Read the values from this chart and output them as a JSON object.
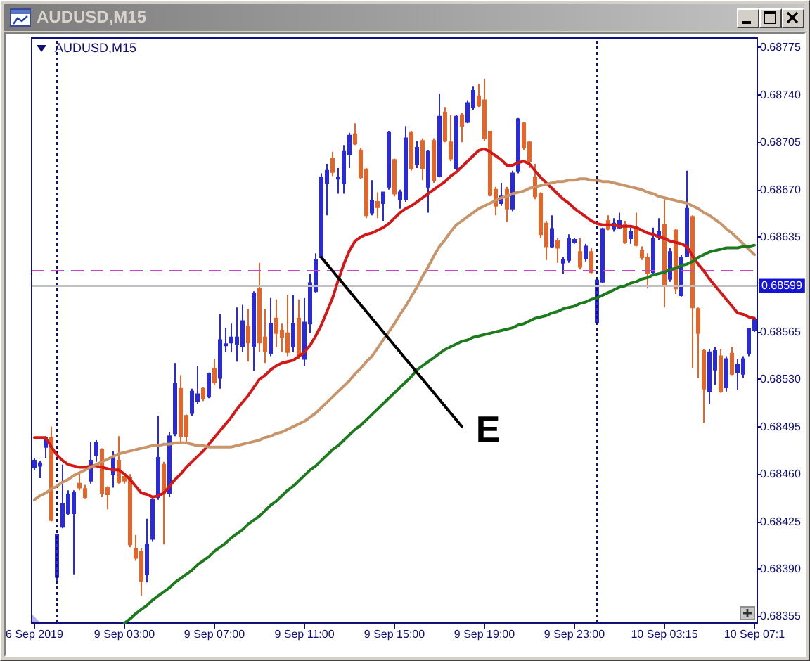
{
  "chart_data": {
    "type": "candlestick",
    "title": "AUDUSD,M15",
    "subtitle": "AUDUSD,M15",
    "categories": [
      "6 Sep 2019",
      null,
      null,
      null,
      null,
      null,
      null,
      null,
      null,
      null,
      null,
      null,
      null,
      null,
      null,
      null,
      "9 Sep 03:00",
      null,
      null,
      null,
      null,
      null,
      null,
      null,
      null,
      null,
      null,
      null,
      null,
      null,
      null,
      null,
      "9 Sep 07:00",
      null,
      null,
      null,
      null,
      null,
      null,
      null,
      null,
      null,
      null,
      null,
      null,
      null,
      null,
      null,
      "9 Sep 11:00",
      null,
      null,
      null,
      null,
      null,
      null,
      null,
      null,
      null,
      null,
      null,
      null,
      null,
      null,
      null,
      "9 Sep 15:00",
      null,
      null,
      null,
      null,
      null,
      null,
      null,
      null,
      null,
      null,
      null,
      null,
      null,
      null,
      null,
      "9 Sep 19:00",
      null,
      null,
      null,
      null,
      null,
      null,
      null,
      null,
      null,
      null,
      null,
      null,
      null,
      null,
      null,
      "9 Sep 23:00",
      null,
      null,
      null,
      null,
      null,
      null,
      null,
      null,
      null,
      null,
      null,
      null,
      null,
      null,
      null,
      "10 Sep 03:15",
      null,
      null,
      null,
      null,
      null,
      null,
      null,
      null,
      null,
      null,
      null,
      null,
      null,
      null,
      null,
      "10 Sep 07:1"
    ],
    "ylim": [
      0.6835,
      0.68782
    ],
    "yticks": [
      0.68355,
      {
        "value": 0.6839,
        "label": "0.68390"
      },
      0.68425,
      {
        "value": 0.6846,
        "label": "0.68460"
      },
      0.68495,
      {
        "value": 0.6853,
        "label": "0.68530"
      },
      0.68565,
      0.68635,
      {
        "value": 0.6867,
        "label": "0.68670"
      },
      0.68705,
      {
        "value": 0.6874,
        "label": "0.68740"
      },
      0.68775
    ],
    "ohlc": [
      [
        0.68465,
        0.68472,
        0.68463,
        0.6847
      ],
      [
        0.68466,
        0.6847,
        0.68457,
        0.68468
      ],
      [
        0.6848,
        0.68488,
        0.68472,
        0.68487
      ],
      [
        0.68487,
        0.68495,
        0.68425,
        0.68426
      ],
      [
        0.68384,
        0.68416,
        0.6838,
        0.68415
      ],
      [
        0.68421,
        0.68467,
        0.6842,
        0.68438
      ],
      [
        0.68431,
        0.68448,
        0.6843,
        0.68445
      ],
      [
        0.68431,
        0.68448,
        0.68386,
        0.68446
      ],
      [
        0.68453,
        0.68462,
        0.68448,
        0.6845
      ],
      [
        0.68449,
        0.68452,
        0.68442,
        0.68443
      ],
      [
        0.68455,
        0.68484,
        0.68453,
        0.6847
      ],
      [
        0.68474,
        0.68485,
        0.68469,
        0.68483
      ],
      [
        0.68478,
        0.68479,
        0.68443,
        0.68446
      ],
      [
        0.6845,
        0.68451,
        0.68434,
        0.68445
      ],
      [
        0.6846,
        0.68477,
        0.6845,
        0.68473
      ],
      [
        0.6847,
        0.68488,
        0.68453,
        0.68454
      ],
      [
        0.68458,
        0.6846,
        0.68453,
        0.68455
      ],
      [
        0.68457,
        0.6846,
        0.68406,
        0.68408
      ],
      [
        0.68405,
        0.68415,
        0.68396,
        0.68398
      ],
      [
        0.68403,
        0.68405,
        0.6837,
        0.68381
      ],
      [
        0.68386,
        0.68427,
        0.6838,
        0.68408
      ],
      [
        0.68412,
        0.68443,
        0.6841,
        0.68441
      ],
      [
        0.68443,
        0.68503,
        0.68441,
        0.68472
      ],
      [
        0.68467,
        0.68469,
        0.68408,
        0.68446
      ],
      [
        0.68446,
        0.68491,
        0.68443,
        0.68488
      ],
      [
        0.6849,
        0.68542,
        0.68488,
        0.68527
      ],
      [
        0.68523,
        0.68533,
        0.68484,
        0.68488
      ],
      [
        0.68503,
        0.68504,
        0.68484,
        0.68488
      ],
      [
        0.68505,
        0.68523,
        0.68503,
        0.68521
      ],
      [
        0.68514,
        0.6854,
        0.68512,
        0.68519
      ],
      [
        0.68523,
        0.68524,
        0.68514,
        0.68516
      ],
      [
        0.68517,
        0.68535,
        0.68516,
        0.68534
      ],
      [
        0.68538,
        0.68545,
        0.68526,
        0.68528
      ],
      [
        0.68531,
        0.68578,
        0.68523,
        0.68559
      ],
      [
        0.68555,
        0.68568,
        0.6855,
        0.68556
      ],
      [
        0.68557,
        0.68571,
        0.6855,
        0.68561
      ],
      [
        0.68556,
        0.68583,
        0.68543,
        0.68561
      ],
      [
        0.68554,
        0.68585,
        0.6855,
        0.68573
      ],
      [
        0.68569,
        0.68582,
        0.68543,
        0.68557
      ],
      [
        0.68554,
        0.68595,
        0.68536,
        0.68593
      ],
      [
        0.68597,
        0.68616,
        0.6855,
        0.68557
      ],
      [
        0.68561,
        0.68582,
        0.68542,
        0.68551
      ],
      [
        0.68549,
        0.6859,
        0.68547,
        0.68571
      ],
      [
        0.68575,
        0.68589,
        0.68554,
        0.68564
      ],
      [
        0.68566,
        0.68571,
        0.6855,
        0.68561
      ],
      [
        0.68564,
        0.68592,
        0.68547,
        0.6855
      ],
      [
        0.68554,
        0.68592,
        0.6855,
        0.68571
      ],
      [
        0.68575,
        0.68589,
        0.68545,
        0.68547
      ],
      [
        0.68545,
        0.6859,
        0.6854,
        0.68572
      ],
      [
        0.68571,
        0.68608,
        0.68564,
        0.68601
      ],
      [
        0.68595,
        0.68623,
        0.68594,
        0.68618
      ],
      [
        0.6862,
        0.68682,
        0.68618,
        0.68679
      ],
      [
        0.68675,
        0.68689,
        0.68651,
        0.68684
      ],
      [
        0.68693,
        0.68698,
        0.6868,
        0.68683
      ],
      [
        0.68678,
        0.68686,
        0.68667,
        0.68679
      ],
      [
        0.68675,
        0.68703,
        0.68667,
        0.68698
      ],
      [
        0.68696,
        0.68712,
        0.68686,
        0.6871
      ],
      [
        0.68711,
        0.68719,
        0.68703,
        0.68704
      ],
      [
        0.68699,
        0.68701,
        0.68678,
        0.68679
      ],
      [
        0.68685,
        0.68686,
        0.68649,
        0.68651
      ],
      [
        0.68653,
        0.68677,
        0.68651,
        0.68662
      ],
      [
        0.68661,
        0.68668,
        0.68649,
        0.68657
      ],
      [
        0.6866,
        0.68668,
        0.68647,
        0.68668
      ],
      [
        0.68672,
        0.68713,
        0.6867,
        0.68712
      ],
      [
        0.68692,
        0.68693,
        0.68665,
        0.68667
      ],
      [
        0.68663,
        0.6867,
        0.68656,
        0.68668
      ],
      [
        0.68663,
        0.68717,
        0.68661,
        0.68708
      ],
      [
        0.68712,
        0.68713,
        0.68684,
        0.68686
      ],
      [
        0.68689,
        0.68706,
        0.68686,
        0.68701
      ],
      [
        0.68706,
        0.68708,
        0.68677,
        0.68686
      ],
      [
        0.68672,
        0.68699,
        0.68653,
        0.68698
      ],
      [
        0.68706,
        0.68708,
        0.68675,
        0.68677
      ],
      [
        0.6868,
        0.68741,
        0.68679,
        0.68724
      ],
      [
        0.68727,
        0.68731,
        0.68705,
        0.68706
      ],
      [
        0.68705,
        0.68725,
        0.68691,
        0.68693
      ],
      [
        0.68686,
        0.68725,
        0.68684,
        0.68724
      ],
      [
        0.68725,
        0.68727,
        0.68705,
        0.68717
      ],
      [
        0.6872,
        0.68736,
        0.68719,
        0.68734
      ],
      [
        0.68731,
        0.68746,
        0.68729,
        0.68743
      ],
      [
        0.68739,
        0.68748,
        0.68731,
        0.68732
      ],
      [
        0.68736,
        0.68752,
        0.68706,
        0.68708
      ],
      [
        0.68713,
        0.68713,
        0.68665,
        0.68666
      ],
      [
        0.6867,
        0.68672,
        0.68651,
        0.68658
      ],
      [
        0.6866,
        0.68675,
        0.68658,
        0.68665
      ],
      [
        0.6867,
        0.68672,
        0.68646,
        0.68656
      ],
      [
        0.68656,
        0.68684,
        0.68654,
        0.68682
      ],
      [
        0.68684,
        0.68723,
        0.68682,
        0.68722
      ],
      [
        0.68719,
        0.6872,
        0.68699,
        0.68701
      ],
      [
        0.68705,
        0.68706,
        0.68686,
        0.68691
      ],
      [
        0.68679,
        0.68689,
        0.68663,
        0.68665
      ],
      [
        0.68667,
        0.68668,
        0.68634,
        0.68637
      ],
      [
        0.68645,
        0.68647,
        0.68618,
        0.68628
      ],
      [
        0.68628,
        0.68651,
        0.68627,
        0.68641
      ],
      [
        0.68632,
        0.68634,
        0.68616,
        0.68627
      ],
      [
        0.68616,
        0.6862,
        0.68608,
        0.68618
      ],
      [
        0.68618,
        0.68637,
        0.68616,
        0.68634
      ],
      [
        0.68631,
        0.68634,
        0.6863,
        0.68633
      ],
      [
        0.68624,
        0.68634,
        0.68611,
        0.68613
      ],
      [
        0.68619,
        0.6863,
        0.68617,
        0.68628
      ],
      [
        0.68624,
        0.68627,
        0.68608,
        0.68609
      ],
      [
        0.68572,
        0.68604,
        0.68571,
        0.68603
      ],
      [
        0.68602,
        0.68642,
        0.68601,
        0.68641
      ],
      [
        0.68647,
        0.68651,
        0.6864,
        0.68641
      ],
      [
        0.68641,
        0.68649,
        0.68639,
        0.68645
      ],
      [
        0.68642,
        0.68653,
        0.68641,
        0.68647
      ],
      [
        0.68644,
        0.68647,
        0.6863,
        0.68631
      ],
      [
        0.68634,
        0.68642,
        0.6863,
        0.68639
      ],
      [
        0.68642,
        0.68653,
        0.68628,
        0.68629
      ],
      [
        0.68625,
        0.68628,
        0.68618,
        0.6862
      ],
      [
        0.6862,
        0.68623,
        0.68597,
        0.68608
      ],
      [
        0.68609,
        0.68642,
        0.68607,
        0.68634
      ],
      [
        0.68635,
        0.68649,
        0.68633,
        0.68639
      ],
      [
        0.68644,
        0.68663,
        0.68583,
        0.68599
      ],
      [
        0.68604,
        0.68627,
        0.68602,
        0.68624
      ],
      [
        0.6864,
        0.68641,
        0.68593,
        0.68597
      ],
      [
        0.68592,
        0.68622,
        0.68591,
        0.6862
      ],
      [
        0.68621,
        0.68684,
        0.6862,
        0.68656
      ],
      [
        0.6865,
        0.68651,
        0.68538,
        0.68583
      ],
      [
        0.68582,
        0.68583,
        0.68531,
        0.68564
      ],
      [
        0.68551,
        0.68552,
        0.68498,
        0.68523
      ],
      [
        0.68521,
        0.68552,
        0.68512,
        0.6855
      ],
      [
        0.68537,
        0.68554,
        0.68526,
        0.68551
      ],
      [
        0.68547,
        0.68552,
        0.6852,
        0.68521
      ],
      [
        0.68524,
        0.68547,
        0.68521,
        0.68545
      ],
      [
        0.68549,
        0.68554,
        0.68533,
        0.68534
      ],
      [
        0.68535,
        0.68545,
        0.68522,
        0.68541
      ],
      [
        0.68534,
        0.68547,
        0.68531,
        0.68545
      ],
      [
        0.68549,
        0.68568,
        0.68547,
        0.68567
      ],
      [
        0.68566,
        0.68576,
        0.68565,
        0.68574
      ]
    ],
    "colors": [
      "#2b2bd6",
      "#2b2bd6",
      "#2b2bd6",
      "#e2662a",
      "#2b2bd6",
      "#2b2bd6",
      "#2b2bd6",
      "#2b2bd6",
      "#e2662a",
      "#e2662a",
      "#2b2bd6",
      "#2b2bd6",
      "#e2662a",
      "#e2662a",
      "#2b2bd6",
      "#e2662a",
      "#e2662a",
      "#e2662a",
      "#e2662a",
      "#e2662a",
      "#2b2bd6",
      "#2b2bd6",
      "#2b2bd6",
      "#e2662a",
      "#2b2bd6",
      "#2b2bd6",
      "#e2662a",
      "#e2662a",
      "#2b2bd6",
      "#2b2bd6",
      "#e2662a",
      "#2b2bd6",
      "#e2662a",
      "#2b2bd6",
      "#2b2bd6",
      "#2b2bd6",
      "#2b2bd6",
      "#2b2bd6",
      "#e2662a",
      "#2b2bd6",
      "#e2662a",
      "#e2662a",
      "#2b2bd6",
      "#e2662a",
      "#e2662a",
      "#e2662a",
      "#2b2bd6",
      "#e2662a",
      "#2b2bd6",
      "#2b2bd6",
      "#2b2bd6",
      "#2b2bd6",
      "#2b2bd6",
      "#e2662a",
      "#2b2bd6",
      "#2b2bd6",
      "#2b2bd6",
      "#e2662a",
      "#e2662a",
      "#e2662a",
      "#2b2bd6",
      "#e2662a",
      "#2b2bd6",
      "#2b2bd6",
      "#e2662a",
      "#2b2bd6",
      "#2b2bd6",
      "#e2662a",
      "#2b2bd6",
      "#e2662a",
      "#2b2bd6",
      "#e2662a",
      "#2b2bd6",
      "#e2662a",
      "#e2662a",
      "#2b2bd6",
      "#e2662a",
      "#2b2bd6",
      "#2b2bd6",
      "#e2662a",
      "#e2662a",
      "#e2662a",
      "#e2662a",
      "#2b2bd6",
      "#e2662a",
      "#2b2bd6",
      "#2b2bd6",
      "#e2662a",
      "#e2662a",
      "#e2662a",
      "#e2662a",
      "#e2662a",
      "#2b2bd6",
      "#e2662a",
      "#2b2bd6",
      "#2b2bd6",
      "#2b2bd6",
      "#e2662a",
      "#2b2bd6",
      "#e2662a",
      "#2b2bd6",
      "#2b2bd6",
      "#e2662a",
      "#2b2bd6",
      "#2b2bd6",
      "#e2662a",
      "#2b2bd6",
      "#e2662a",
      "#e2662a",
      "#e2662a",
      "#2b2bd6",
      "#2b2bd6",
      "#e2662a",
      "#2b2bd6",
      "#e2662a",
      "#2b2bd6",
      "#2b2bd6",
      "#e2662a",
      "#e2662a",
      "#e2662a",
      "#2b2bd6",
      "#2b2bd6",
      "#e2662a",
      "#2b2bd6",
      "#e2662a",
      "#2b2bd6",
      "#2b2bd6",
      "#2b2bd6",
      "#2b2bd6"
    ],
    "series": [
      {
        "type": "line",
        "color": "#d41818",
        "values": [
          0.68487,
          0.68487,
          0.68487,
          0.6848,
          0.68474,
          0.6847,
          0.68467,
          0.68466,
          0.68465,
          0.68465,
          0.68466,
          0.68466,
          0.68465,
          0.68464,
          0.68463,
          0.68463,
          0.6846,
          0.68456,
          0.68451,
          0.68446,
          0.68445,
          0.68443,
          0.68444,
          0.68446,
          0.68451,
          0.68456,
          0.6846,
          0.68465,
          0.68469,
          0.68473,
          0.68477,
          0.68482,
          0.68487,
          0.68492,
          0.68497,
          0.68502,
          0.68508,
          0.68513,
          0.68518,
          0.68524,
          0.6853,
          0.68533,
          0.68537,
          0.6854,
          0.68542,
          0.68543,
          0.68544,
          0.68547,
          0.6855,
          0.68555,
          0.68562,
          0.6857,
          0.6858,
          0.6859,
          0.68603,
          0.68615,
          0.68625,
          0.68632,
          0.68635,
          0.68637,
          0.68638,
          0.6864,
          0.68642,
          0.68645,
          0.68649,
          0.68653,
          0.68656,
          0.68658,
          0.68661,
          0.68664,
          0.68667,
          0.6867,
          0.68673,
          0.68676,
          0.6868,
          0.68683,
          0.68687,
          0.68691,
          0.68695,
          0.68699,
          0.687,
          0.68698,
          0.68695,
          0.68692,
          0.68688,
          0.68688,
          0.6869,
          0.68691,
          0.68689,
          0.68684,
          0.68679,
          0.68675,
          0.68671,
          0.68667,
          0.68663,
          0.6866,
          0.68656,
          0.68653,
          0.6865,
          0.68647,
          0.68645,
          0.68644,
          0.68644,
          0.68644,
          0.68643,
          0.68643,
          0.68643,
          0.68642,
          0.6864,
          0.68638,
          0.68637,
          0.68635,
          0.68634,
          0.68632,
          0.68631,
          0.6863,
          0.68628,
          0.68621,
          0.68615,
          0.6861,
          0.68604,
          0.68599,
          0.68594,
          0.68589,
          0.68584,
          0.68579,
          0.68578,
          0.68576,
          0.68575
        ]
      },
      {
        "type": "line",
        "color": "#c8956a",
        "values": [
          0.68441,
          0.68444,
          0.68446,
          0.68449,
          0.68451,
          0.68454,
          0.68456,
          0.68459,
          0.68461,
          0.68463,
          0.68465,
          0.68467,
          0.68469,
          0.68471,
          0.68473,
          0.68475,
          0.68476,
          0.68477,
          0.68478,
          0.68479,
          0.6848,
          0.68481,
          0.68481,
          0.68482,
          0.68482,
          0.68483,
          0.68483,
          0.68483,
          0.68482,
          0.68481,
          0.68481,
          0.6848,
          0.6848,
          0.6848,
          0.6848,
          0.6848,
          0.68481,
          0.68482,
          0.68483,
          0.68484,
          0.68485,
          0.68487,
          0.68488,
          0.6849,
          0.68491,
          0.68493,
          0.68495,
          0.68497,
          0.68499,
          0.68502,
          0.68505,
          0.68509,
          0.68513,
          0.68517,
          0.68521,
          0.68525,
          0.68529,
          0.68534,
          0.68538,
          0.68543,
          0.68547,
          0.68553,
          0.68559,
          0.68565,
          0.68571,
          0.68578,
          0.68584,
          0.68591,
          0.68598,
          0.68606,
          0.68613,
          0.68621,
          0.68628,
          0.68633,
          0.68639,
          0.68644,
          0.68647,
          0.6865,
          0.68653,
          0.68656,
          0.68658,
          0.6866,
          0.68662,
          0.68664,
          0.68665,
          0.68667,
          0.68668,
          0.68669,
          0.68671,
          0.68672,
          0.68673,
          0.68674,
          0.68675,
          0.68676,
          0.68676,
          0.68677,
          0.68677,
          0.68678,
          0.68678,
          0.68677,
          0.68677,
          0.68676,
          0.68676,
          0.68675,
          0.68674,
          0.68673,
          0.68672,
          0.68671,
          0.6867,
          0.68668,
          0.68667,
          0.68665,
          0.68664,
          0.68663,
          0.68662,
          0.68661,
          0.6866,
          0.68658,
          0.68656,
          0.68653,
          0.68651,
          0.68648,
          0.68645,
          0.68641,
          0.68638,
          0.68634,
          0.6863,
          0.68626,
          0.68622
        ]
      },
      {
        "type": "line",
        "color": "#1d7a1d",
        "values": [
          null,
          null,
          null,
          null,
          null,
          null,
          null,
          null,
          null,
          null,
          null,
          null,
          null,
          null,
          null,
          null,
          0.6835,
          0.68353,
          0.68357,
          0.6836,
          0.68363,
          0.68367,
          0.6837,
          0.68373,
          0.68376,
          0.6838,
          0.68383,
          0.68386,
          0.68389,
          0.68393,
          0.68396,
          0.68399,
          0.68403,
          0.68406,
          0.68409,
          0.68413,
          0.68416,
          0.68419,
          0.68423,
          0.68426,
          0.68429,
          0.68433,
          0.68437,
          0.6844,
          0.68444,
          0.68448,
          0.68451,
          0.68455,
          0.68459,
          0.68463,
          0.68466,
          0.6847,
          0.68474,
          0.68478,
          0.68481,
          0.68485,
          0.68489,
          0.68493,
          0.68496,
          0.685,
          0.68504,
          0.68508,
          0.68512,
          0.68516,
          0.6852,
          0.68524,
          0.68528,
          0.68532,
          0.68537,
          0.6854,
          0.68543,
          0.68546,
          0.68549,
          0.68552,
          0.68554,
          0.68556,
          0.68558,
          0.68559,
          0.68561,
          0.68562,
          0.68563,
          0.68564,
          0.68565,
          0.68566,
          0.68567,
          0.68568,
          0.6857,
          0.68571,
          0.68573,
          0.68575,
          0.68576,
          0.68577,
          0.68579,
          0.6858,
          0.68582,
          0.68583,
          0.68584,
          0.68586,
          0.68587,
          0.68589,
          0.6859,
          0.68592,
          0.68594,
          0.68596,
          0.68598,
          0.68599,
          0.68601,
          0.68602,
          0.68604,
          0.68605,
          0.68607,
          0.68608,
          0.68609,
          0.68611,
          0.68612,
          0.68614,
          0.68615,
          0.68617,
          0.6862,
          0.68622,
          0.68624,
          0.68625,
          0.68626,
          0.68627,
          0.68627,
          0.68627,
          0.68628,
          0.68628,
          0.68629
        ]
      },
      {
        "type": "line",
        "color": "#000000",
        "values": [
          null,
          null,
          null,
          null,
          null,
          null,
          null,
          null,
          null,
          null,
          null,
          null,
          null,
          null,
          null,
          null,
          null,
          null,
          null,
          null,
          null,
          null,
          null,
          null,
          null,
          null,
          null,
          null,
          null,
          null,
          null,
          null,
          null,
          null,
          null,
          null,
          null,
          null,
          null,
          null,
          null,
          null,
          null,
          null,
          null,
          null,
          null,
          null,
          null,
          null,
          null,
          0.6862,
          0.68615,
          0.6861,
          0.68605,
          0.686,
          0.68595,
          0.6859,
          0.68585,
          0.6858,
          0.68575,
          0.6857,
          0.68565,
          0.6856,
          0.68555,
          0.6855,
          0.68545,
          0.6854,
          0.68535,
          0.6853,
          0.68525,
          0.6852,
          0.68515,
          0.6851,
          0.68505,
          0.685,
          0.68495,
          null,
          null,
          null,
          null,
          null,
          null,
          null,
          null,
          null,
          null,
          null,
          null,
          null,
          null,
          null,
          null,
          null,
          null,
          null,
          null,
          null,
          null,
          null,
          null,
          null,
          null,
          null,
          null,
          null,
          null,
          null,
          null,
          null,
          null,
          null,
          null,
          null,
          null,
          null,
          null,
          null,
          null,
          null,
          null,
          null,
          null,
          null,
          null,
          null,
          null,
          null,
          null
        ]
      }
    ],
    "ref_lines": [
      {
        "axis": "y",
        "value": 0.6861,
        "color": "#cc44cc",
        "line_style": "dashed"
      },
      {
        "axis": "y",
        "value": 0.68599,
        "label": "0.68599",
        "color": "#c0c0c0"
      }
    ],
    "annotations": [
      "E"
    ],
    "grid": false,
    "marker": "none"
  }
}
